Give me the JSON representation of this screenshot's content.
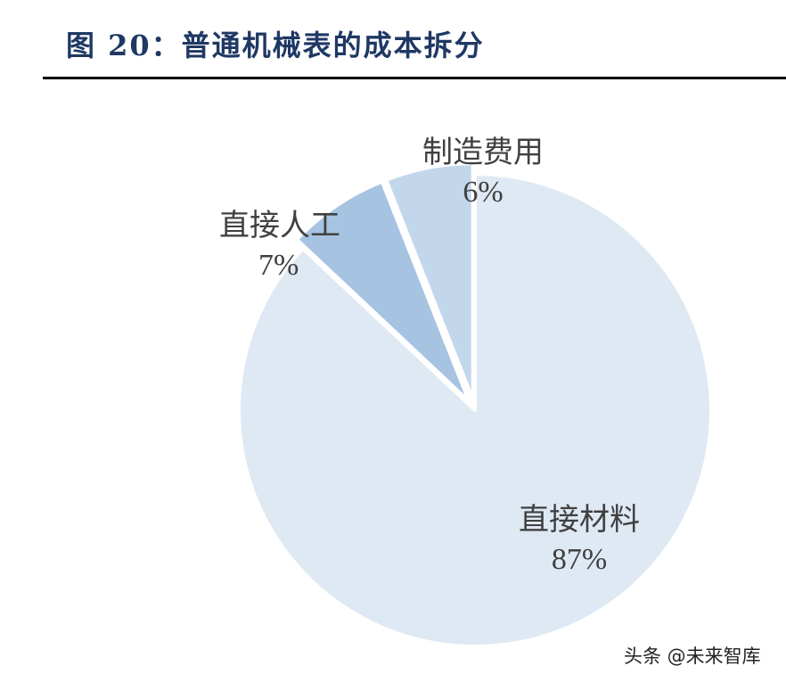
{
  "title": "图 20：普通机械表的成本拆分",
  "watermark": "头条 @未来智库",
  "colors": {
    "title": "#1f3864",
    "rule": "#000000",
    "direct_materials": "#dfe9f4",
    "direct_labor": "#a7c3e2",
    "manufacturing_overhead": "#c3d7ec",
    "label_text": "#404040"
  },
  "labels": {
    "direct_materials": {
      "name": "直接材料",
      "pct": "87%"
    },
    "direct_labor": {
      "name": "直接人工",
      "pct": "7%"
    },
    "manufacturing_overhead": {
      "name": "制造费用",
      "pct": "6%"
    }
  },
  "chart_data": {
    "type": "pie",
    "title": "图 20：普通机械表的成本拆分",
    "categories": [
      "直接材料",
      "直接人工",
      "制造费用"
    ],
    "values": [
      87,
      7,
      6
    ],
    "unit": "%",
    "exploded": [
      "直接人工",
      "制造费用"
    ],
    "start_angle": "12 o'clock, clockwise: 直接材料 first",
    "legend": "none (data labels on slices)"
  }
}
